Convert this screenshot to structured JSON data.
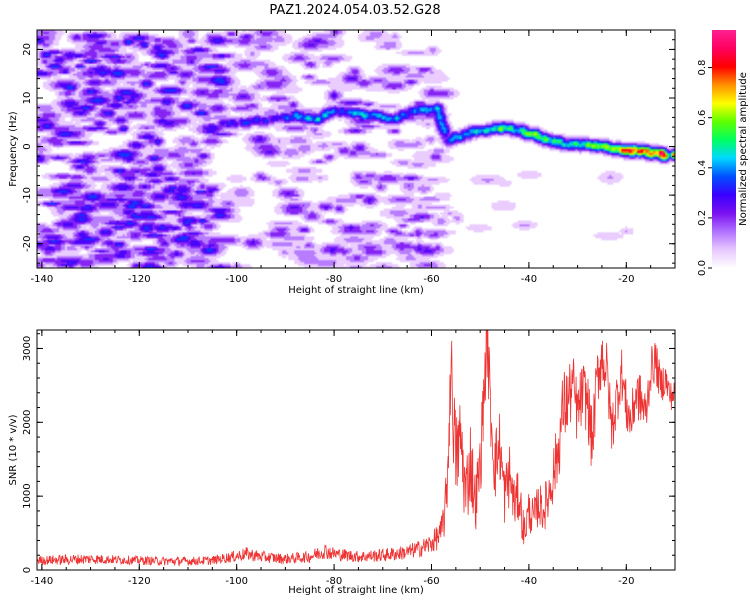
{
  "figure": {
    "title": "PAZ1.2024.054.03.52.G28"
  },
  "chart_data": [
    {
      "type": "heatmap",
      "xlabel": "Height of straight line (km)",
      "ylabel": "Frequency (Hz)",
      "xlim": [
        -141,
        -10
      ],
      "ylim": [
        -25,
        24
      ],
      "xticks": [
        -140,
        -120,
        -100,
        -80,
        -60,
        -40,
        -20
      ],
      "yticks": [
        -20,
        -10,
        0,
        10,
        20
      ],
      "xticklabels": [
        "-140",
        "-120",
        "-100",
        "-80",
        "-60",
        "-40",
        "-20"
      ],
      "yticklabels": [
        "-20",
        "-10",
        "0",
        "10",
        "20"
      ],
      "colorbar": {
        "label": "Normalized spectral amplitude",
        "range": [
          0.0,
          0.95
        ],
        "ticks": [
          0.0,
          0.2,
          0.4,
          0.6,
          0.8
        ],
        "ticklabels": [
          "0.0",
          "0.2",
          "0.4",
          "0.6",
          "0.8"
        ],
        "colormap": [
          "#ffffff",
          "#e8c8ff",
          "#b070ff",
          "#7a10f0",
          "#3a00ff",
          "#0050ff",
          "#00d8ff",
          "#00ff60",
          "#60ff00",
          "#ffff00",
          "#ff9000",
          "#ff0000",
          "#ff0060",
          "#ff2090"
        ]
      },
      "noise": {
        "dense_x_range": [
          -141,
          -103
        ],
        "medium_x_range": [
          -103,
          -58
        ],
        "dense_amplitude": 0.3,
        "medium_amplitude": 0.22
      },
      "ridge": [
        {
          "x": -103,
          "f": 5.0,
          "amp": 0.28
        },
        {
          "x": -98,
          "f": 5.2,
          "amp": 0.3
        },
        {
          "x": -93,
          "f": 5.8,
          "amp": 0.32
        },
        {
          "x": -88,
          "f": 6.5,
          "amp": 0.36
        },
        {
          "x": -84,
          "f": 5.8,
          "amp": 0.45
        },
        {
          "x": -80,
          "f": 7.5,
          "amp": 0.35
        },
        {
          "x": -76,
          "f": 7.0,
          "amp": 0.4
        },
        {
          "x": -72,
          "f": 6.5,
          "amp": 0.38
        },
        {
          "x": -68,
          "f": 6.0,
          "amp": 0.42
        },
        {
          "x": -63,
          "f": 7.5,
          "amp": 0.36
        },
        {
          "x": -59,
          "f": 8.0,
          "amp": 0.45
        },
        {
          "x": -57,
          "f": 1.5,
          "amp": 0.3
        },
        {
          "x": -54,
          "f": 2.5,
          "amp": 0.45
        },
        {
          "x": -50,
          "f": 3.5,
          "amp": 0.4
        },
        {
          "x": -46,
          "f": 4.0,
          "amp": 0.55
        },
        {
          "x": -42,
          "f": 3.5,
          "amp": 0.5
        },
        {
          "x": -39,
          "f": 2.5,
          "amp": 0.55
        },
        {
          "x": -36,
          "f": 1.5,
          "amp": 0.5
        },
        {
          "x": -32,
          "f": 0.5,
          "amp": 0.48
        },
        {
          "x": -28,
          "f": 0.5,
          "amp": 0.55
        },
        {
          "x": -24,
          "f": 0.0,
          "amp": 0.6
        },
        {
          "x": -20,
          "f": -0.5,
          "amp": 0.75
        },
        {
          "x": -16,
          "f": -1.0,
          "amp": 0.7
        },
        {
          "x": -12,
          "f": -1.5,
          "amp": 0.85
        }
      ]
    },
    {
      "type": "line",
      "xlabel": "Height of straight line (km)",
      "ylabel": "SNR (10 * v/v)",
      "xlim": [
        -141,
        -10
      ],
      "ylim": [
        0,
        3250
      ],
      "xticks": [
        -140,
        -120,
        -100,
        -80,
        -60,
        -40,
        -20
      ],
      "yticks": [
        0,
        1000,
        2000,
        3000
      ],
      "xticklabels": [
        "-140",
        "-120",
        "-100",
        "-80",
        "-60",
        "-40",
        "-20"
      ],
      "yticklabels": [
        "0",
        "1000",
        "2000",
        "3000"
      ],
      "series": [
        {
          "color": "#ee3333",
          "x": [
            -141,
            -135,
            -130,
            -125,
            -120,
            -115,
            -110,
            -105,
            -100,
            -98,
            -95,
            -90,
            -85,
            -82,
            -80,
            -75,
            -70,
            -65,
            -62,
            -60,
            -58,
            -57,
            -56.5,
            -56,
            -55.5,
            -55,
            -54,
            -53,
            -52,
            -51,
            -50,
            -49,
            -48.5,
            -48,
            -47,
            -46,
            -45,
            -44,
            -43,
            -42,
            -41,
            -40,
            -39,
            -38,
            -37,
            -36,
            -35,
            -34,
            -33,
            -32,
            -31,
            -30,
            -29,
            -28,
            -27,
            -26,
            -25,
            -24,
            -23,
            -22,
            -21,
            -20,
            -19,
            -18,
            -17,
            -16,
            -15,
            -14,
            -13,
            -12,
            -11,
            -10
          ],
          "y": [
            130,
            140,
            150,
            140,
            130,
            120,
            120,
            130,
            190,
            220,
            180,
            150,
            180,
            260,
            220,
            180,
            200,
            240,
            300,
            360,
            500,
            900,
            1700,
            2850,
            2100,
            1500,
            1800,
            1000,
            1500,
            900,
            1400,
            2700,
            3200,
            2300,
            1400,
            1700,
            1000,
            1300,
            900,
            1000,
            500,
            800,
            700,
            900,
            800,
            1000,
            1300,
            1600,
            2200,
            2300,
            2500,
            2100,
            2400,
            2300,
            1700,
            2600,
            2900,
            2700,
            1900,
            2300,
            2700,
            2200,
            2000,
            2400,
            2300,
            2100,
            2700,
            2850,
            2500,
            2600,
            2350,
            2400
          ],
          "noise": [
            60,
            70,
            70,
            60,
            60,
            60,
            60,
            60,
            80,
            90,
            80,
            70,
            80,
            110,
            90,
            80,
            90,
            100,
            120,
            140,
            200,
            400,
            600,
            500,
            700,
            600,
            600,
            500,
            600,
            400,
            500,
            500,
            600,
            500,
            500,
            500,
            400,
            450,
            350,
            350,
            250,
            300,
            250,
            300,
            300,
            350,
            400,
            450,
            500,
            500,
            450,
            450,
            450,
            450,
            450,
            400,
            450,
            400,
            350,
            400,
            350,
            350,
            350,
            350,
            350,
            350,
            300,
            300,
            250,
            250,
            200,
            200
          ]
        }
      ]
    }
  ]
}
